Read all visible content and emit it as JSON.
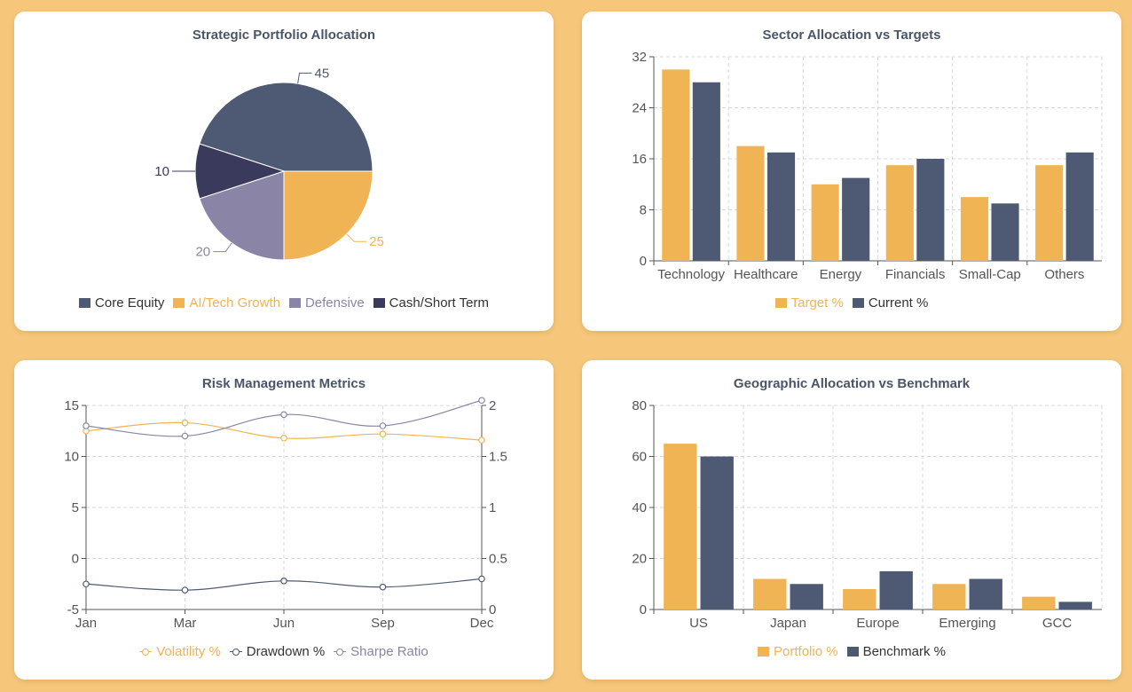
{
  "colors": {
    "navy": "#4e5a73",
    "orange": "#f0b454",
    "lavender": "#8a85a6",
    "dark": "#3a3a5c",
    "axis": "#555555",
    "grid": "#d8d8d8"
  },
  "chart_data": [
    {
      "type": "pie",
      "title": "Strategic Portfolio Allocation",
      "categories": [
        "Core Equity",
        "AI/Tech Growth",
        "Defensive",
        "Cash/Short Term"
      ],
      "values": [
        45,
        25,
        20,
        10
      ],
      "colors": [
        "#4e5a73",
        "#f0b454",
        "#8a85a6",
        "#3a3a5c"
      ],
      "labels": [
        "45",
        "25",
        "20",
        "10"
      ],
      "legend": "bottom"
    },
    {
      "type": "bar",
      "title": "Sector Allocation vs Targets",
      "categories": [
        "Technology",
        "Healthcare",
        "Energy",
        "Financials",
        "Small-Cap",
        "Others"
      ],
      "series": [
        {
          "name": "Target %",
          "values": [
            30,
            18,
            12,
            15,
            10,
            15
          ],
          "color": "#f0b454"
        },
        {
          "name": "Current %",
          "values": [
            28,
            17,
            13,
            16,
            9,
            17
          ],
          "color": "#4e5a73"
        }
      ],
      "ylim": [
        0,
        32
      ],
      "yticks": [
        "0",
        "8",
        "16",
        "24",
        "32"
      ],
      "grid": true,
      "legend": "bottom"
    },
    {
      "type": "line",
      "title": "Risk Management Metrics",
      "categories": [
        "Jan",
        "Mar",
        "Jun",
        "Sep",
        "Dec"
      ],
      "series": [
        {
          "name": "Volatility %",
          "values": [
            12.5,
            13.3,
            11.8,
            12.2,
            11.6
          ],
          "color": "#f0b454",
          "axis": "left"
        },
        {
          "name": "Drawdown %",
          "values": [
            -2.5,
            -3.1,
            -2.2,
            -2.8,
            -2.0
          ],
          "color": "#4e5a73",
          "axis": "left"
        },
        {
          "name": "Sharpe Ratio",
          "values": [
            1.8,
            1.7,
            1.91,
            1.8,
            2.05
          ],
          "color": "#8a85a6",
          "axis": "right"
        }
      ],
      "ylim_left": [
        -5,
        15
      ],
      "yticks_left": [
        "-5",
        "0",
        "5",
        "10",
        "15"
      ],
      "ylim_right": [
        0,
        2
      ],
      "yticks_right": [
        "0",
        "0.5",
        "1",
        "1.5",
        "2"
      ],
      "grid": true,
      "legend": "bottom"
    },
    {
      "type": "bar",
      "title": "Geographic Allocation vs Benchmark",
      "categories": [
        "US",
        "Japan",
        "Europe",
        "Emerging",
        "GCC"
      ],
      "series": [
        {
          "name": "Portfolio %",
          "values": [
            65,
            12,
            8,
            10,
            5
          ],
          "color": "#f0b454"
        },
        {
          "name": "Benchmark %",
          "values": [
            60,
            10,
            15,
            12,
            3
          ],
          "color": "#4e5a73"
        }
      ],
      "ylim": [
        0,
        80
      ],
      "yticks": [
        "0",
        "20",
        "40",
        "60",
        "80"
      ],
      "grid": true,
      "legend": "bottom"
    }
  ]
}
